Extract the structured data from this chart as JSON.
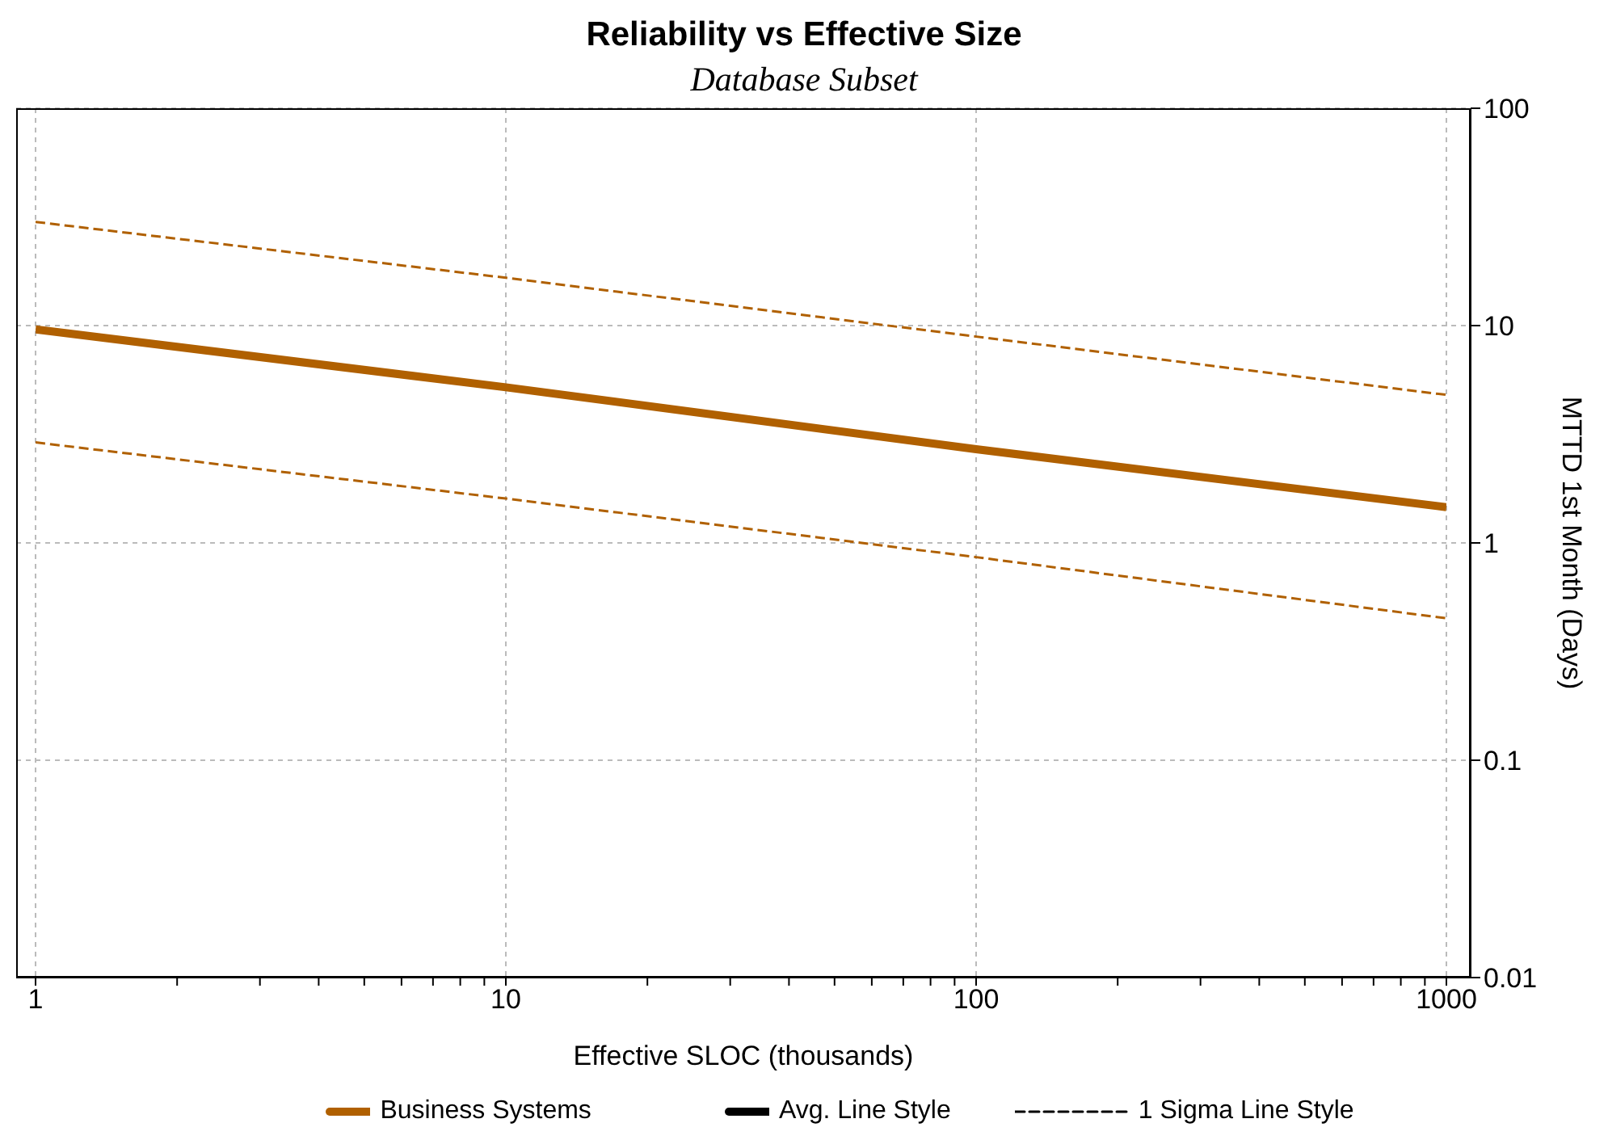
{
  "chart_data": {
    "type": "line",
    "title": "Reliability vs Effective Size",
    "subtitle": "Database Subset",
    "xlabel": "Effective SLOC (thousands)",
    "ylabel": "MTTD 1st Month (Days)",
    "log": "xy",
    "grid": true,
    "legend": "bottom",
    "x": [
      1,
      10,
      100,
      1000
    ],
    "xlim": [
      1,
      1000
    ],
    "xticks": [
      1,
      {
        "value": 2,
        "label": null
      },
      {
        "value": 3,
        "label": null
      },
      {
        "value": 4,
        "label": null
      },
      {
        "value": 5,
        "label": null
      },
      {
        "value": 6,
        "label": null
      },
      {
        "value": 7,
        "label": null
      },
      {
        "value": 8,
        "label": null
      },
      {
        "value": 9,
        "label": null
      },
      10,
      {
        "value": 20,
        "label": null
      },
      {
        "value": 30,
        "label": null
      },
      {
        "value": 40,
        "label": null
      },
      {
        "value": 50,
        "label": null
      },
      {
        "value": 60,
        "label": null
      },
      {
        "value": 70,
        "label": null
      },
      {
        "value": 80,
        "label": null
      },
      {
        "value": 90,
        "label": null
      },
      100,
      {
        "value": 200,
        "label": null
      },
      {
        "value": 300,
        "label": null
      },
      {
        "value": 400,
        "label": null
      },
      {
        "value": 500,
        "label": null
      },
      {
        "value": 600,
        "label": null
      },
      {
        "value": 700,
        "label": null
      },
      {
        "value": 800,
        "label": null
      },
      {
        "value": 900,
        "label": null
      },
      1000
    ],
    "ylim": [
      0.01,
      100
    ],
    "yticks": [
      0.01,
      0.1,
      1,
      10,
      100
    ],
    "series": [
      {
        "name": "Business Systems",
        "color": "#b06000",
        "line_style": "solid",
        "values": [
          9.6,
          5.2,
          2.7,
          1.46
        ]
      },
      {
        "color": "#b06000",
        "line_style": "dashed",
        "values": [
          30,
          16.6,
          8.9,
          4.8
        ]
      },
      {
        "color": "#b06000",
        "line_style": "dashed",
        "values": [
          2.9,
          1.6,
          0.86,
          0.45
        ]
      },
      {
        "name": "Avg. Line Style",
        "color": "#000000",
        "line_style": "solid",
        "values": [
          null,
          null,
          null,
          null
        ]
      },
      {
        "name": "1 Sigma Line Style",
        "color": "#000000",
        "line_style": "dashed",
        "values": [
          null,
          null,
          null,
          null
        ]
      }
    ]
  }
}
